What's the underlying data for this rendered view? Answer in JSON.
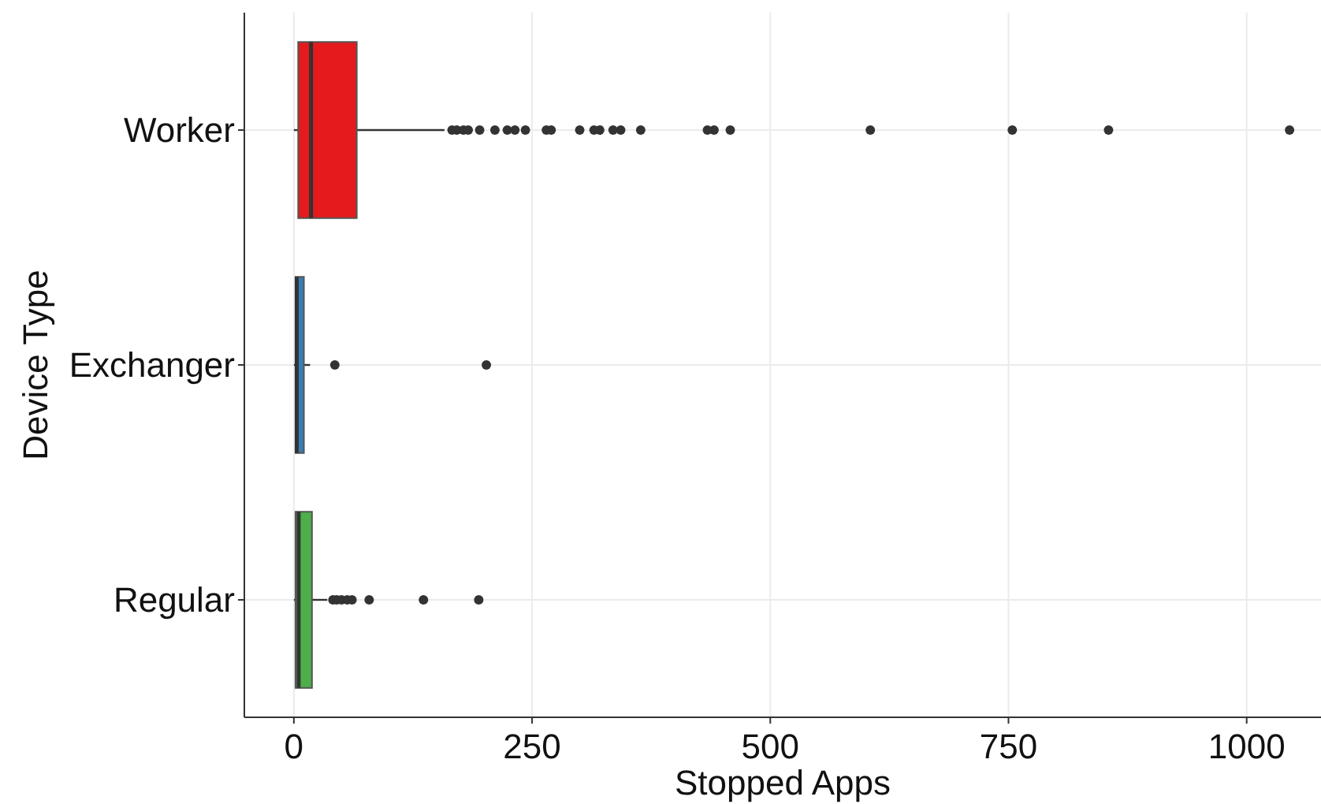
{
  "chart_data": {
    "type": "box",
    "orientation": "horizontal",
    "xlabel": "Stopped Apps",
    "ylabel": "Device Type",
    "categories": [
      "Worker",
      "Exchanger",
      "Regular"
    ],
    "colors": [
      "#e41a1c",
      "#377eb8",
      "#4daf4a"
    ],
    "boxes": [
      {
        "low": 0,
        "q1": 4.5,
        "median": 18,
        "q3": 66,
        "high": 158,
        "outliers": [
          166,
          171,
          178,
          183,
          195,
          211,
          224,
          232,
          243,
          265,
          270,
          300,
          315,
          321,
          335,
          343,
          364,
          434,
          441,
          458,
          605,
          754,
          855,
          1045
        ]
      },
      {
        "low": 0,
        "q1": 1.7,
        "median": 3,
        "q3": 10.5,
        "high": 17,
        "outliers": [
          43,
          202
        ]
      },
      {
        "low": 0,
        "q1": 1.7,
        "median": 5,
        "q3": 19,
        "high": 35,
        "outliers": [
          41,
          45,
          50,
          56,
          61,
          79,
          136,
          194
        ]
      }
    ],
    "xlim": [
      -52,
      1078
    ],
    "xticks": [
      0,
      250,
      500,
      750,
      1000
    ],
    "grid": true
  }
}
